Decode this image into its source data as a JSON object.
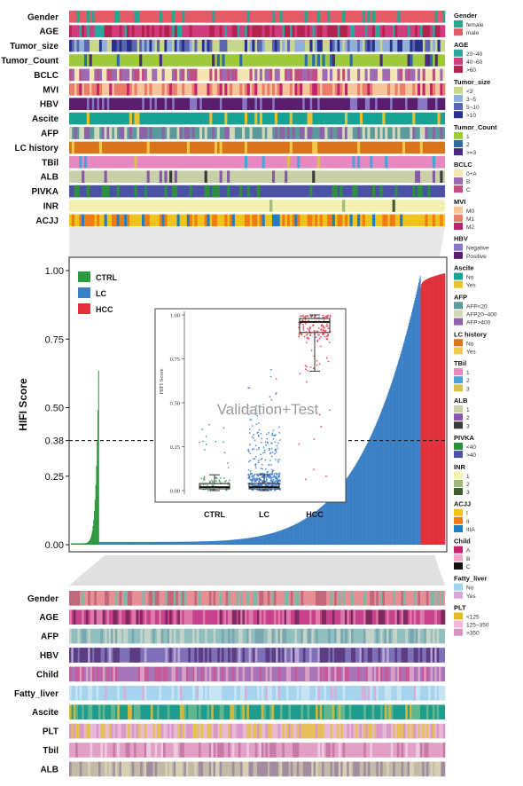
{
  "top_heatmap": {
    "tracks": [
      {
        "label": "Gender",
        "palette": [
          "#e25b67",
          "#2aa58f"
        ],
        "weights": [
          0.82,
          0.18
        ]
      },
      {
        "label": "AGE",
        "palette": [
          "#2ba89d",
          "#d23c7c",
          "#b3234e"
        ],
        "weights": [
          0.2,
          0.45,
          0.35
        ]
      },
      {
        "label": "Tumor_size",
        "palette": [
          "#c9d78a",
          "#8fb0d8",
          "#5a66ae",
          "#27308a"
        ],
        "weights": [
          0.3,
          0.25,
          0.25,
          0.2
        ]
      },
      {
        "label": "Tumor_Count",
        "palette": [
          "#9ec93a",
          "#2c6ca3",
          "#4a2a7a"
        ],
        "weights": [
          0.85,
          0.08,
          0.07
        ]
      },
      {
        "label": "BCLC",
        "palette": [
          "#f3e6b2",
          "#9d6ab4",
          "#c14e82"
        ],
        "weights": [
          0.45,
          0.3,
          0.25
        ]
      },
      {
        "label": "MVI",
        "palette": [
          "#f6c69a",
          "#eb7c6a",
          "#c0216f"
        ],
        "weights": [
          0.45,
          0.35,
          0.2
        ]
      },
      {
        "label": "HBV",
        "palette": [
          "#8a77c4",
          "#5a1d6e"
        ],
        "weights": [
          0.3,
          0.7
        ]
      },
      {
        "label": "Ascite",
        "palette": [
          "#16a394",
          "#e8c232"
        ],
        "weights": [
          0.9,
          0.1
        ]
      },
      {
        "label": "AFP",
        "palette": [
          "#5b9a9a",
          "#d3d8b8",
          "#8d62a8"
        ],
        "weights": [
          0.45,
          0.3,
          0.25
        ]
      },
      {
        "label": "LC history",
        "palette": [
          "#d8731e",
          "#f2c84b"
        ],
        "weights": [
          0.88,
          0.12
        ]
      },
      {
        "label": "TBil",
        "palette": [
          "#e888c0",
          "#4aa3d6",
          "#d9c04e"
        ],
        "weights": [
          0.93,
          0.04,
          0.03
        ]
      },
      {
        "label": "ALB",
        "palette": [
          "#c9d0a8",
          "#8858a8",
          "#3a3a3a"
        ],
        "weights": [
          0.9,
          0.07,
          0.03
        ]
      },
      {
        "label": "PIVKA",
        "palette": [
          "#4b52a6",
          "#2e8f3e"
        ],
        "weights": [
          0.8,
          0.2
        ]
      },
      {
        "label": "INR",
        "palette": [
          "#f2f1b2",
          "#9cb87a",
          "#3f5c2e"
        ],
        "weights": [
          0.98,
          0.015,
          0.005
        ]
      },
      {
        "label": "ACJJ",
        "palette": [
          "#f0c21c",
          "#f07c14",
          "#1d7fc1"
        ],
        "weights": [
          0.55,
          0.35,
          0.1
        ]
      }
    ]
  },
  "legend": {
    "groups": [
      {
        "title": "Gender",
        "items": [
          {
            "label": "female",
            "color": "#2aa58f"
          },
          {
            "label": "male",
            "color": "#e25b67"
          }
        ]
      },
      {
        "title": "AGE",
        "items": [
          {
            "label": "20~40",
            "color": "#2ba89d"
          },
          {
            "label": "40~60",
            "color": "#d23c7c"
          },
          {
            "label": ">60",
            "color": "#b3234e"
          }
        ]
      },
      {
        "title": "Tumor_size",
        "items": [
          {
            "label": "<3",
            "color": "#c9d78a"
          },
          {
            "label": "3~5",
            "color": "#8fb0d8"
          },
          {
            "label": "5~10",
            "color": "#5a66ae"
          },
          {
            "label": ">10",
            "color": "#27308a"
          }
        ]
      },
      {
        "title": "Tumor_Count",
        "items": [
          {
            "label": "1",
            "color": "#9ec93a"
          },
          {
            "label": "2",
            "color": "#2c6ca3"
          },
          {
            "label": ">=3",
            "color": "#4a2a7a"
          }
        ]
      },
      {
        "title": "BCLC",
        "items": [
          {
            "label": "0+A",
            "color": "#f3e6b2"
          },
          {
            "label": "B",
            "color": "#9d6ab4"
          },
          {
            "label": "C",
            "color": "#c14e82"
          }
        ]
      },
      {
        "title": "MVI",
        "items": [
          {
            "label": "M0",
            "color": "#f6c69a"
          },
          {
            "label": "M1",
            "color": "#eb7c6a"
          },
          {
            "label": "M2",
            "color": "#c0216f"
          }
        ]
      },
      {
        "title": "HBV",
        "items": [
          {
            "label": "Negative",
            "color": "#8a77c4"
          },
          {
            "label": "Positive",
            "color": "#5a1d6e"
          }
        ]
      },
      {
        "title": "Ascite",
        "items": [
          {
            "label": "No",
            "color": "#16a394"
          },
          {
            "label": "Yes",
            "color": "#e8c232"
          }
        ]
      },
      {
        "title": "AFP",
        "items": [
          {
            "label": "AFP<20",
            "color": "#5b9a9a"
          },
          {
            "label": "AFP20~400",
            "color": "#d3d8b8"
          },
          {
            "label": "AFP>400",
            "color": "#8d62a8"
          }
        ]
      },
      {
        "title": "LC history",
        "items": [
          {
            "label": "No",
            "color": "#d8731e"
          },
          {
            "label": "Yes",
            "color": "#f2c84b"
          }
        ]
      },
      {
        "title": "TBil",
        "items": [
          {
            "label": "1",
            "color": "#e888c0"
          },
          {
            "label": "2",
            "color": "#4aa3d6"
          },
          {
            "label": "3",
            "color": "#d9c04e"
          }
        ]
      },
      {
        "title": "ALB",
        "items": [
          {
            "label": "1",
            "color": "#c9d0a8"
          },
          {
            "label": "2",
            "color": "#8858a8"
          },
          {
            "label": "3",
            "color": "#3a3a3a"
          }
        ]
      },
      {
        "title": "PIVKA",
        "items": [
          {
            "label": "<40",
            "color": "#2e8f3e"
          },
          {
            "label": ">40",
            "color": "#4b52a6"
          }
        ]
      },
      {
        "title": "INR",
        "items": [
          {
            "label": "1",
            "color": "#f2f1b2"
          },
          {
            "label": "2",
            "color": "#9cb87a"
          },
          {
            "label": "3",
            "color": "#3f5c2e"
          }
        ]
      },
      {
        "title": "ACJJ",
        "items": [
          {
            "label": "I",
            "color": "#f0c21c"
          },
          {
            "label": "II",
            "color": "#f07c14"
          },
          {
            "label": "IIIA",
            "color": "#1d7fc1"
          }
        ]
      },
      {
        "title": "Child",
        "items": [
          {
            "label": "A",
            "color": "#c72170"
          },
          {
            "label": "B",
            "color": "#f2a6c8"
          },
          {
            "label": "C",
            "color": "#111111"
          }
        ]
      },
      {
        "title": "Fatty_liver",
        "items": [
          {
            "label": "No",
            "color": "#9fd3ee"
          },
          {
            "label": "Yes",
            "color": "#d6a7d8"
          }
        ]
      },
      {
        "title": "PLT",
        "items": [
          {
            "label": "<125",
            "color": "#e2bc25"
          },
          {
            "label": "125~350",
            "color": "#efb7d8"
          },
          {
            "label": ">350",
            "color": "#d993c4"
          }
        ]
      }
    ]
  },
  "bottom_heatmap": {
    "tracks": [
      {
        "label": "Gender",
        "palette": [
          "#e78f95",
          "#c0697a",
          "#7cb9a8"
        ],
        "weights": [
          0.6,
          0.25,
          0.15
        ]
      },
      {
        "label": "AGE",
        "palette": [
          "#c9418a",
          "#dd7aab",
          "#7e2a5e"
        ],
        "weights": [
          0.55,
          0.3,
          0.15
        ]
      },
      {
        "label": "AFP",
        "palette": [
          "#8fbfbf",
          "#c5d2c8",
          "#7aa7b0"
        ],
        "weights": [
          0.55,
          0.3,
          0.15
        ]
      },
      {
        "label": "HBV",
        "palette": [
          "#7e70b6",
          "#5c3c82",
          "#b8a7d6"
        ],
        "weights": [
          0.5,
          0.35,
          0.15
        ]
      },
      {
        "label": "Child",
        "palette": [
          "#a874b8",
          "#c95a9a",
          "#d8a0c8"
        ],
        "weights": [
          0.5,
          0.3,
          0.2
        ]
      },
      {
        "label": "Fatty_liver",
        "palette": [
          "#a6d4ee",
          "#c6e4f4",
          "#d5b0da"
        ],
        "weights": [
          0.6,
          0.3,
          0.1
        ]
      },
      {
        "label": "Ascite",
        "palette": [
          "#1e9c8c",
          "#5fb68f",
          "#d0b83e"
        ],
        "weights": [
          0.6,
          0.3,
          0.1
        ]
      },
      {
        "label": "PLT",
        "palette": [
          "#e8b9d6",
          "#e5c05a",
          "#d99acb"
        ],
        "weights": [
          0.45,
          0.35,
          0.2
        ]
      },
      {
        "label": "Tbil",
        "palette": [
          "#e3a0c6",
          "#c77aa8",
          "#eccbe0"
        ],
        "weights": [
          0.6,
          0.25,
          0.15
        ]
      },
      {
        "label": "ALB",
        "palette": [
          "#c3bba8",
          "#a38ca0",
          "#d6d0b4"
        ],
        "weights": [
          0.45,
          0.35,
          0.2
        ]
      }
    ]
  },
  "chart_data": {
    "type": "bar",
    "ylabel": "HIFI Score",
    "yticks": [
      "0.00",
      "0.25",
      "0.38",
      "0.50",
      "0.75",
      "1.00"
    ],
    "ylim": [
      0,
      1
    ],
    "threshold": 0.38,
    "legend": [
      "CTRL",
      "LC",
      "HCC"
    ],
    "colors": {
      "CTRL": "#2e9a3f",
      "LC": "#3b7fc4",
      "HCC": "#e0303c"
    },
    "groups": [
      {
        "name": "CTRL",
        "count": 40,
        "min": 0.0,
        "max": 0.63
      },
      {
        "name": "LC",
        "count": 460,
        "min": 0.01,
        "max": 0.98
      },
      {
        "name": "HCC",
        "count": 35,
        "min": 0.94,
        "max": 0.99
      }
    ],
    "inset": {
      "type": "box",
      "title": "Validation+Test",
      "ylabel": "HIFI Score",
      "yticks": [
        "0.00",
        "0.25",
        "0.50",
        "0.75",
        "1.00"
      ],
      "categories": [
        "CTRL",
        "LC",
        "HCC"
      ],
      "boxes": [
        {
          "name": "CTRL",
          "whisker_low": 0.0,
          "q1": 0.01,
          "median": 0.02,
          "q3": 0.04,
          "whisker_high": 0.09
        },
        {
          "name": "LC",
          "whisker_low": 0.0,
          "q1": 0.01,
          "median": 0.02,
          "q3": 0.04,
          "whisker_high": 0.09
        },
        {
          "name": "HCC",
          "whisker_low": 0.68,
          "q1": 0.9,
          "median": 0.96,
          "q3": 0.98,
          "whisker_high": 1.0
        }
      ]
    }
  }
}
